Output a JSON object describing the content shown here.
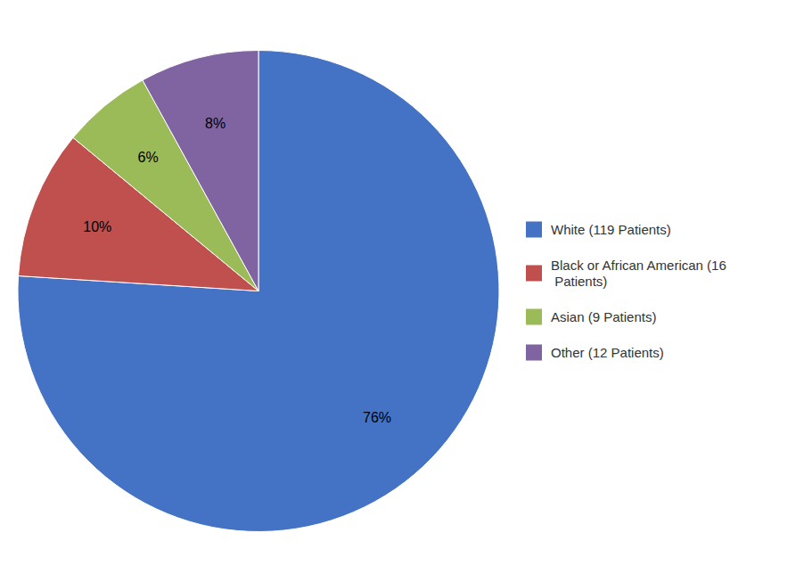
{
  "chart_data": {
    "type": "pie",
    "categories": [
      "White (119 Patients)",
      "Black or African American (16\n Patients)",
      "Asian (9 Patients)",
      "Other (12 Patients)"
    ],
    "values": [
      76,
      10,
      6,
      8
    ],
    "value_labels": [
      "76%",
      "10%",
      "6%",
      "8%"
    ],
    "data_labels": true,
    "colors": [
      "#4472C4",
      "#C0504D",
      "#9BBB59",
      "#8064A2"
    ],
    "legend": "right"
  }
}
